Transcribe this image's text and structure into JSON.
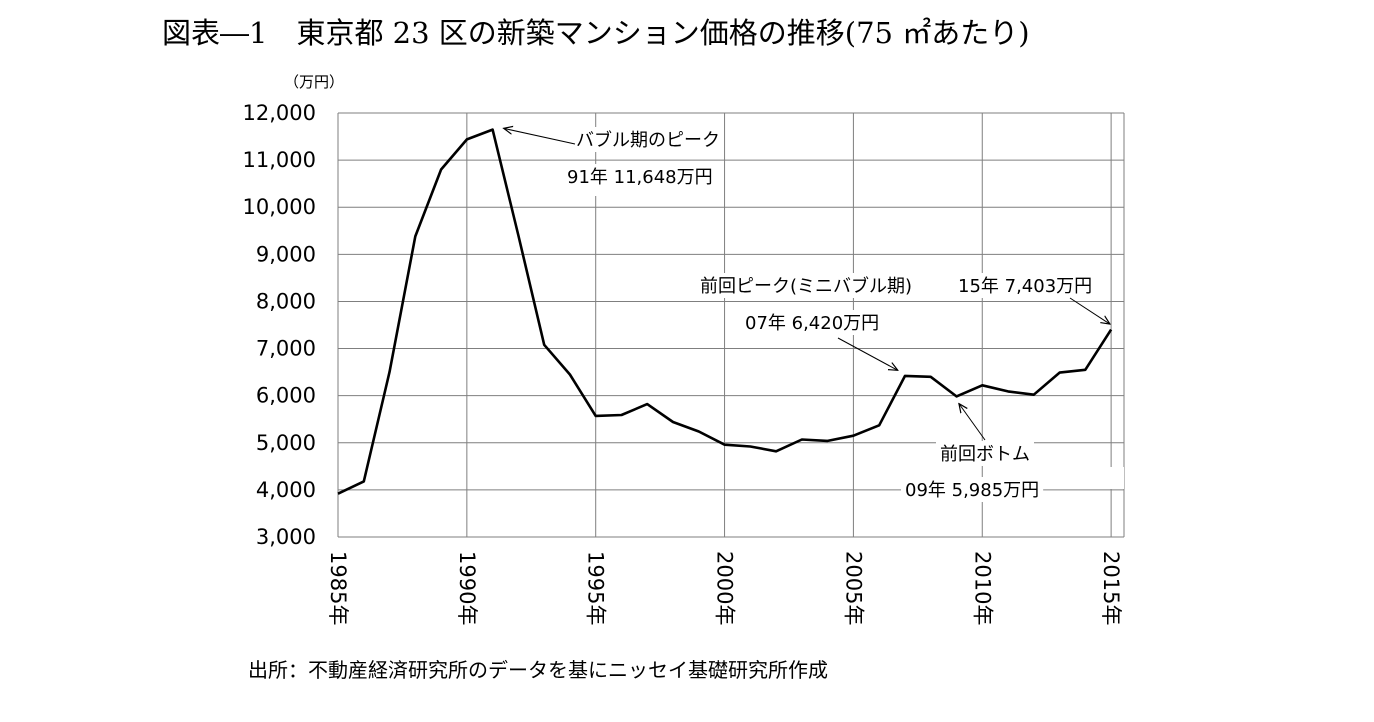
{
  "title": "図表―1　東京都 23 区の新築マンション価格の推移(75 ㎡あたり)",
  "source": "出所：不動産経済研究所のデータを基にニッセイ基礎研究所作成",
  "chart_data": {
    "type": "line",
    "title": "図表―1　東京都 23 区の新築マンション価格の推移(75 ㎡あたり)",
    "xlabel": "",
    "ylabel": "",
    "y_unit_label": "（万円）",
    "ylim": [
      3000,
      12000
    ],
    "y_ticks": [
      3000,
      4000,
      5000,
      6000,
      7000,
      8000,
      9000,
      10000,
      11000,
      12000
    ],
    "y_tick_labels": [
      "3,000",
      "4,000",
      "5,000",
      "6,000",
      "7,000",
      "8,000",
      "9,000",
      "10,000",
      "11,000",
      "12,000"
    ],
    "xlim": [
      1985,
      2015.5
    ],
    "x_ticks": [
      1985,
      1990,
      1995,
      2000,
      2005,
      2010,
      2015
    ],
    "x_tick_labels": [
      "1985年",
      "1990年",
      "1995年",
      "2000年",
      "2005年",
      "2010年",
      "2015年"
    ],
    "grid": true,
    "legend": "none",
    "line_color": "#000000",
    "grid_color": "#7f7f7f",
    "series": [
      {
        "x": [
          1985,
          1986,
          1987,
          1988,
          1989,
          1990,
          1991,
          1992,
          1993,
          1994,
          1995,
          1996,
          1997,
          1998,
          1999,
          2000,
          2001,
          2002,
          2003,
          2004,
          2005,
          2006,
          2007,
          2008,
          2009,
          2010,
          2011,
          2012,
          2013,
          2014,
          2015
        ],
        "values": [
          3920,
          4180,
          6500,
          9380,
          10800,
          11440,
          11648,
          9400,
          7080,
          6450,
          5570,
          5590,
          5820,
          5440,
          5240,
          4960,
          4920,
          4820,
          5070,
          5040,
          5150,
          5370,
          6420,
          6400,
          5985,
          6220,
          6090,
          6020,
          6490,
          6550,
          7403
        ]
      }
    ],
    "annotations": [
      {
        "lines": [
          "バブル期のピーク",
          "91年 11,648万円"
        ],
        "x": 1991,
        "y": 11648
      },
      {
        "lines": [
          "前回ピーク(ミニバブル期)",
          "07年 6,420万円"
        ],
        "x": 2007,
        "y": 6420
      },
      {
        "lines": [
          "15年 7,403万円"
        ],
        "x": 2015,
        "y": 7403
      },
      {
        "lines": [
          "前回ボトム",
          "09年 5,985万円"
        ],
        "x": 2009,
        "y": 5985
      }
    ]
  }
}
